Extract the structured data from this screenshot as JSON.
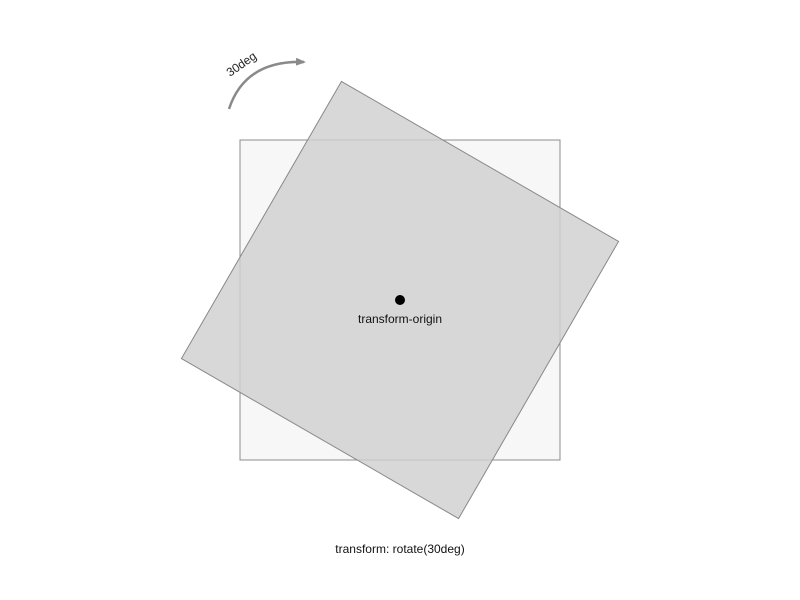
{
  "diagram": {
    "angle_label": "30deg",
    "origin_label": "transform-origin",
    "caption": "transform: rotate(30deg)",
    "rotation_degrees": 30
  },
  "colors": {
    "original_fill": "#f7f7f7",
    "original_stroke": "#8c8c8c",
    "rotated_fill": "#d6d6d6",
    "rotated_stroke": "#888888",
    "origin_dot": "#000000",
    "arrow": "#8a8a8a"
  }
}
